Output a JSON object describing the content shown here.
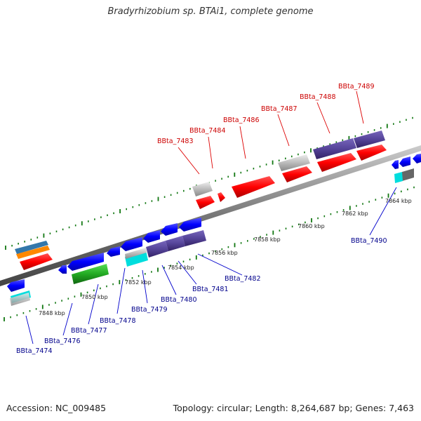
{
  "title": "Bradyrhizobium sp. BTAi1, complete genome",
  "footer": {
    "accession": "Accession: NC_009485",
    "stats": "Topology: circular; Length: 8,264,687 bp; Genes: 7,463"
  },
  "kbp_labels": [
    "7848 kbp",
    "7850 kbp",
    "7852 kbp",
    "7854 kbp",
    "7856 kbp",
    "7858 kbp",
    "7860 kbp",
    "7862 kbp",
    "7864 kbp"
  ],
  "gene_labels_top": [
    "BBta_7483",
    "BBta_7484",
    "BBta_7486",
    "BBta_7487",
    "BBta_7488",
    "BBta_7489"
  ],
  "gene_labels_bottom": [
    "BBta_7474",
    "BBta_7476",
    "BBta_7477",
    "BBta_7478",
    "BBta_7479",
    "BBta_7480",
    "BBta_7481",
    "BBta_7482",
    "BBta_7490"
  ],
  "colors": {
    "forward": "#ff0000",
    "reverse": "#0000ff",
    "purple": "#554499",
    "grey": "#bbbbbb",
    "green": "#22aa22",
    "cyan": "#00dddd",
    "orange": "#ff8800",
    "steel": "#3377aa",
    "tick": "#117711"
  }
}
